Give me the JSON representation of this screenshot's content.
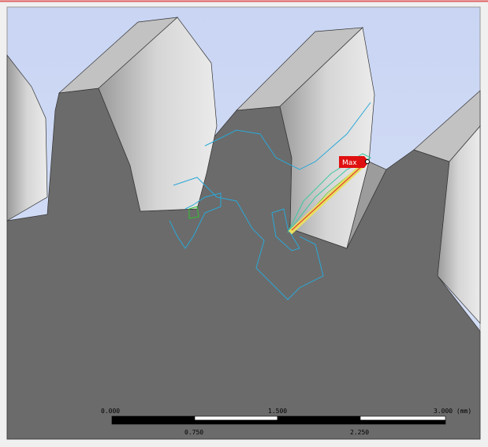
{
  "viewport": {
    "max_label": "Max"
  },
  "scale_bar": {
    "top_labels": [
      "0.000",
      "1.500",
      "3.000 (mm)"
    ],
    "bottom_labels": [
      "0.750",
      "2.250"
    ]
  }
}
